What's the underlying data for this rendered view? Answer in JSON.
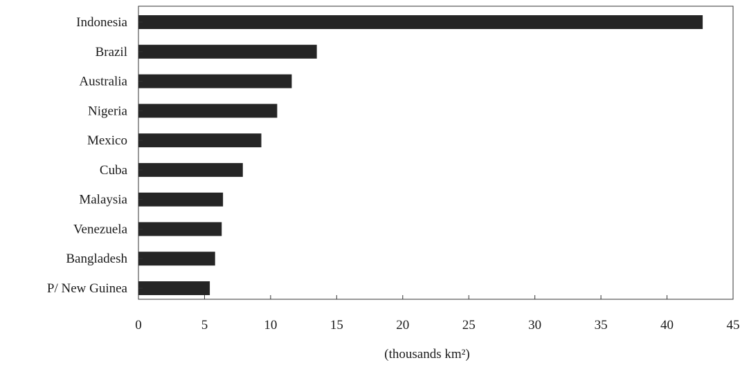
{
  "chart_data": {
    "type": "bar",
    "orientation": "horizontal",
    "categories": [
      "Indonesia",
      "Brazil",
      "Australia",
      "Nigeria",
      "Mexico",
      "Cuba",
      "Malaysia",
      "Venezuela",
      "Bangladesh",
      "P/ New Guinea"
    ],
    "values": [
      42.7,
      13.5,
      11.6,
      10.5,
      9.3,
      7.9,
      6.4,
      6.3,
      5.8,
      5.4
    ],
    "title": "",
    "xlabel": "(thousands km²)",
    "ylabel": "",
    "xlim": [
      0,
      45
    ],
    "xticks": [
      0,
      5,
      10,
      15,
      20,
      25,
      30,
      35,
      40,
      45
    ],
    "grid": false,
    "legend": "none",
    "bar_color": "#252525",
    "axis_color": "#333333"
  }
}
